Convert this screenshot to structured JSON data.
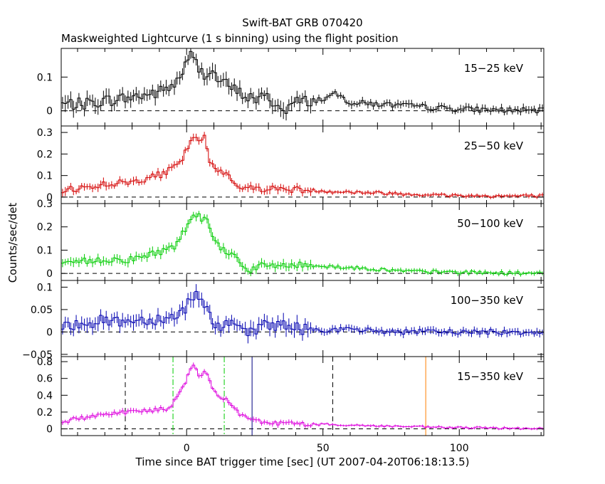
{
  "title": "Swift-BAT GRB 070420",
  "subtitle": "Maskweighted Lightcurve (1 s binning) using the flight position",
  "xlabel": "Time since BAT trigger time [sec] (UT 2007-04-20T06:18:13.5)",
  "ylabel": "Counts/sec/det",
  "colors": {
    "axes": "#000000",
    "band_15_25": "#000000",
    "band_25_50": "#d40000",
    "band_50_100": "#00cc00",
    "band_100_350": "#0000b0",
    "band_15_350": "#dd00dd",
    "t90_lines": "#00cc00",
    "t100_lines": "#000000",
    "marker_blue": "#000080",
    "marker_orange": "#ff8000"
  },
  "chart_data": {
    "type": "line",
    "x_range": [
      -46,
      131
    ],
    "x_ticks": [
      0,
      50,
      100
    ],
    "x_tick_labels": [
      "0",
      "50",
      "100"
    ],
    "binning_s": 1,
    "panels": [
      {
        "label": "15−25 keV",
        "color": "#000000",
        "ylim": [
          -0.045,
          0.185
        ],
        "yticks": [
          0,
          0.1
        ],
        "ytick_labels": [
          "0",
          "0.1"
        ],
        "noise": 0.018,
        "profile": [
          [
            -46,
            0.02
          ],
          [
            -38,
            0.02
          ],
          [
            -30,
            0.03
          ],
          [
            -20,
            0.04
          ],
          [
            -10,
            0.055
          ],
          [
            -4,
            0.08
          ],
          [
            0,
            0.14
          ],
          [
            2,
            0.17
          ],
          [
            4,
            0.13
          ],
          [
            6,
            0.11
          ],
          [
            9,
            0.12
          ],
          [
            12,
            0.09
          ],
          [
            16,
            0.07
          ],
          [
            20,
            0.05
          ],
          [
            25,
            0.035
          ],
          [
            30,
            0.04
          ],
          [
            35,
            0.0
          ],
          [
            40,
            0.025
          ],
          [
            50,
            0.035
          ],
          [
            55,
            0.05
          ],
          [
            60,
            0.025
          ],
          [
            80,
            0.015
          ],
          [
            100,
            0.005
          ],
          [
            131,
            0.0
          ]
        ]
      },
      {
        "label": "25−50 keV",
        "color": "#d40000",
        "ylim": [
          -0.03,
          0.33
        ],
        "yticks": [
          0,
          0.1,
          0.2,
          0.3
        ],
        "ytick_labels": [
          "0",
          "0.1",
          "0.2",
          "0.3"
        ],
        "noise": 0.015,
        "profile": [
          [
            -46,
            0.03
          ],
          [
            -40,
            0.04
          ],
          [
            -30,
            0.06
          ],
          [
            -20,
            0.07
          ],
          [
            -14,
            0.09
          ],
          [
            -8,
            0.11
          ],
          [
            -2,
            0.16
          ],
          [
            1,
            0.25
          ],
          [
            3,
            0.29
          ],
          [
            4,
            0.24
          ],
          [
            5,
            0.26
          ],
          [
            7,
            0.28
          ],
          [
            8,
            0.18
          ],
          [
            10,
            0.13
          ],
          [
            14,
            0.12
          ],
          [
            18,
            0.06
          ],
          [
            22,
            0.04
          ],
          [
            30,
            0.04
          ],
          [
            40,
            0.035
          ],
          [
            55,
            0.025
          ],
          [
            70,
            0.02
          ],
          [
            90,
            0.01
          ],
          [
            110,
            0.005
          ],
          [
            131,
            0.005
          ]
        ]
      },
      {
        "label": "50−100 keV",
        "color": "#00cc00",
        "ylim": [
          -0.03,
          0.3
        ],
        "yticks": [
          0,
          0.1,
          0.2,
          0.3
        ],
        "ytick_labels": [
          "0",
          "0.1",
          "0.2",
          "0.3"
        ],
        "noise": 0.015,
        "profile": [
          [
            -46,
            0.03
          ],
          [
            -40,
            0.05
          ],
          [
            -30,
            0.06
          ],
          [
            -20,
            0.06
          ],
          [
            -14,
            0.08
          ],
          [
            -8,
            0.1
          ],
          [
            -4,
            0.12
          ],
          [
            0,
            0.2
          ],
          [
            2,
            0.25
          ],
          [
            4,
            0.26
          ],
          [
            6,
            0.22
          ],
          [
            7,
            0.27
          ],
          [
            9,
            0.18
          ],
          [
            12,
            0.11
          ],
          [
            16,
            0.09
          ],
          [
            20,
            0.05
          ],
          [
            22,
            0.01
          ],
          [
            26,
            0.03
          ],
          [
            35,
            0.035
          ],
          [
            45,
            0.035
          ],
          [
            60,
            0.025
          ],
          [
            80,
            0.01
          ],
          [
            100,
            0.005
          ],
          [
            131,
            0.0
          ]
        ]
      },
      {
        "label": "100−350 keV",
        "color": "#0000b0",
        "ylim": [
          -0.055,
          0.115
        ],
        "yticks": [
          -0.05,
          0,
          0.05,
          0.1
        ],
        "ytick_labels": [
          "−0.05",
          "0",
          "0.05",
          "0.1"
        ],
        "noise": 0.013,
        "profile": [
          [
            -46,
            0.005
          ],
          [
            -40,
            0.02
          ],
          [
            -30,
            0.025
          ],
          [
            -20,
            0.025
          ],
          [
            -10,
            0.03
          ],
          [
            -4,
            0.035
          ],
          [
            -1,
            0.05
          ],
          [
            2,
            0.08
          ],
          [
            4,
            0.085
          ],
          [
            6,
            0.07
          ],
          [
            8,
            0.04
          ],
          [
            12,
            0.01
          ],
          [
            16,
            0.015
          ],
          [
            20,
            0.005
          ],
          [
            24,
            -0.005
          ],
          [
            28,
            0.02
          ],
          [
            34,
            0.015
          ],
          [
            45,
            0.005
          ],
          [
            60,
            0.005
          ],
          [
            80,
            0.0
          ],
          [
            100,
            0.0
          ],
          [
            131,
            0.0
          ]
        ]
      },
      {
        "label": "15−350 keV",
        "color": "#dd00dd",
        "ylim": [
          -0.08,
          0.86
        ],
        "yticks": [
          0,
          0.2,
          0.4,
          0.6,
          0.8
        ],
        "ytick_labels": [
          "0",
          "0.2",
          "0.4",
          "0.6",
          "0.8"
        ],
        "noise": 0.025,
        "profile": [
          [
            -46,
            0.08
          ],
          [
            -40,
            0.12
          ],
          [
            -30,
            0.18
          ],
          [
            -20,
            0.21
          ],
          [
            -12,
            0.22
          ],
          [
            -6,
            0.25
          ],
          [
            -2,
            0.45
          ],
          [
            1,
            0.68
          ],
          [
            3,
            0.76
          ],
          [
            5,
            0.6
          ],
          [
            7,
            0.7
          ],
          [
            9,
            0.5
          ],
          [
            12,
            0.4
          ],
          [
            16,
            0.3
          ],
          [
            20,
            0.16
          ],
          [
            24,
            0.1
          ],
          [
            28,
            0.08
          ],
          [
            40,
            0.06
          ],
          [
            55,
            0.05
          ],
          [
            70,
            0.035
          ],
          [
            90,
            0.02
          ],
          [
            110,
            0.01
          ],
          [
            131,
            0.005
          ]
        ],
        "markers": [
          {
            "t": -22.5,
            "style": "dashed",
            "color": "#000000"
          },
          {
            "t": -5.0,
            "style": "dashdot",
            "color": "#00cc00"
          },
          {
            "t": 13.8,
            "style": "dashdot",
            "color": "#00cc00"
          },
          {
            "t": 24.0,
            "style": "solid",
            "color": "#000080"
          },
          {
            "t": 53.6,
            "style": "dashed",
            "color": "#000000"
          },
          {
            "t": 87.7,
            "style": "solid",
            "color": "#ff8000"
          }
        ]
      }
    ]
  }
}
